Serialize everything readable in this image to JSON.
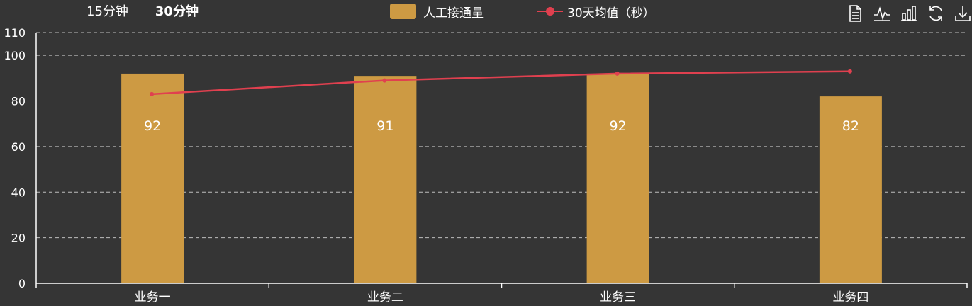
{
  "range_tabs": [
    {
      "label": "15分钟",
      "active": false
    },
    {
      "label": "30分钟",
      "active": true
    }
  ],
  "toolbox": [
    "data-view-icon",
    "line-chart-icon",
    "bar-chart-icon",
    "refresh-icon",
    "download-icon"
  ],
  "chart_data": {
    "type": "bar",
    "categories": [
      "业务一",
      "业务二",
      "业务三",
      "业务四"
    ],
    "series": [
      {
        "name": "人工接通量",
        "type": "bar",
        "color": "#cd9a43",
        "values": [
          92,
          91,
          92,
          82
        ]
      },
      {
        "name": "30天均值（秒）",
        "type": "line",
        "color": "#e0404f",
        "values": [
          83,
          89,
          92,
          93
        ]
      }
    ],
    "yticks": [
      0,
      20,
      40,
      60,
      80,
      100,
      110
    ],
    "ylim": [
      0,
      110
    ],
    "grid": true,
    "legend_position": "top-center"
  }
}
